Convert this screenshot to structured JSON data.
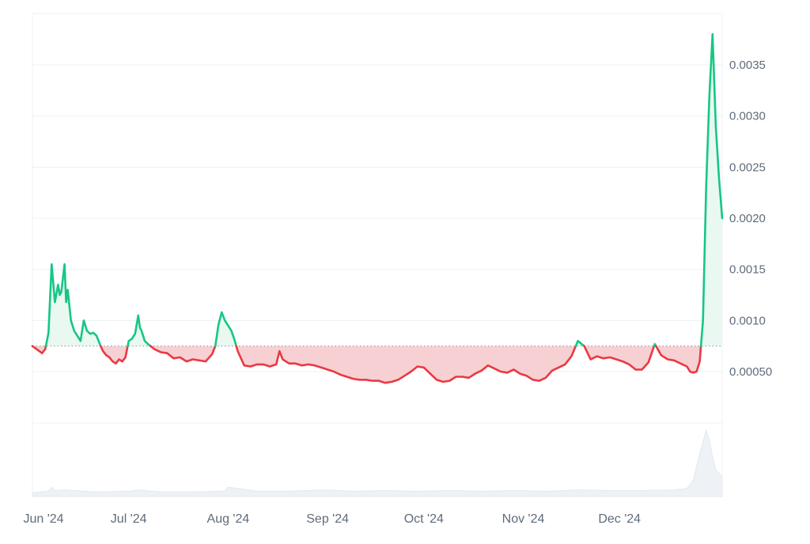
{
  "chart_data": {
    "type": "area",
    "title": "",
    "xlabel": "",
    "ylabel": "",
    "baseline": 0.00075,
    "ylim": [
      0.0,
      0.004
    ],
    "y_ticks": [
      {
        "value": 0.0005,
        "label": "0.00050"
      },
      {
        "value": 0.001,
        "label": "0.0010"
      },
      {
        "value": 0.0015,
        "label": "0.0015"
      },
      {
        "value": 0.002,
        "label": "0.0020"
      },
      {
        "value": 0.0025,
        "label": "0.0025"
      },
      {
        "value": 0.003,
        "label": "0.0030"
      },
      {
        "value": 0.0035,
        "label": "0.0035"
      }
    ],
    "x_ticks": [
      "Jun '24",
      "Jul '24",
      "Aug '24",
      "Sep '24",
      "Oct '24",
      "Nov '24",
      "Dec '24"
    ],
    "x_tick_days": [
      0,
      30,
      61,
      92,
      122,
      153,
      183
    ],
    "xlim_days": [
      0,
      215
    ],
    "colors": {
      "up_line": "#16c784",
      "up_fill": "#e9f8f1",
      "down_line": "#ea3943",
      "down_fill": "#f6d0d2",
      "grid": "#eef0f3",
      "baseline_dots": "#8a8f98",
      "volume_fill": "#eef1f5"
    },
    "price": {
      "days": [
        0,
        3,
        4,
        5,
        6,
        7,
        8,
        8.5,
        9,
        10,
        10.5,
        11,
        12,
        13,
        14,
        15,
        16,
        17,
        18,
        19,
        20,
        21,
        22,
        23,
        24,
        25,
        26,
        27,
        28,
        29,
        30,
        31,
        32,
        33,
        33.5,
        34,
        35,
        36,
        38,
        40,
        42,
        44,
        46,
        48,
        50,
        52,
        54,
        56,
        57,
        58,
        59,
        60,
        61,
        62,
        63,
        64,
        66,
        68,
        70,
        72,
        74,
        76,
        77,
        78,
        80,
        82,
        84,
        86,
        88,
        90,
        92,
        94,
        96,
        98,
        100,
        102,
        104,
        106,
        108,
        110,
        112,
        114,
        116,
        118,
        120,
        122,
        124,
        126,
        128,
        130,
        132,
        134,
        136,
        138,
        140,
        142,
        144,
        146,
        148,
        150,
        152,
        154,
        156,
        158,
        160,
        162,
        164,
        166,
        168,
        170,
        172,
        174,
        176,
        178,
        180,
        182,
        184,
        186,
        188,
        190,
        192,
        194,
        196,
        198,
        200,
        202,
        204,
        205,
        206,
        207,
        208,
        209,
        210,
        211,
        212,
        213,
        214,
        215
      ],
      "values": [
        0.00075,
        0.00068,
        0.00072,
        0.00088,
        0.00155,
        0.00118,
        0.00135,
        0.00125,
        0.00128,
        0.00155,
        0.00118,
        0.0013,
        0.001,
        0.0009,
        0.00085,
        0.0008,
        0.001,
        0.0009,
        0.00087,
        0.00088,
        0.00085,
        0.00077,
        0.0007,
        0.00066,
        0.00064,
        0.0006,
        0.00058,
        0.00062,
        0.0006,
        0.00064,
        0.0008,
        0.00082,
        0.00087,
        0.00105,
        0.00093,
        0.0009,
        0.0008,
        0.00077,
        0.00072,
        0.00069,
        0.00068,
        0.00063,
        0.00064,
        0.0006,
        0.00062,
        0.00061,
        0.0006,
        0.00067,
        0.00075,
        0.00096,
        0.00108,
        0.001,
        0.00095,
        0.0009,
        0.00081,
        0.0007,
        0.00056,
        0.00055,
        0.00057,
        0.00057,
        0.00055,
        0.00057,
        0.0007,
        0.00062,
        0.00058,
        0.00058,
        0.00056,
        0.00057,
        0.00056,
        0.00054,
        0.00052,
        0.0005,
        0.00047,
        0.00045,
        0.00043,
        0.00042,
        0.00042,
        0.00041,
        0.00041,
        0.00039,
        0.0004,
        0.00042,
        0.00046,
        0.0005,
        0.00055,
        0.00054,
        0.00048,
        0.00042,
        0.0004,
        0.00041,
        0.00045,
        0.00045,
        0.00044,
        0.00048,
        0.00051,
        0.00056,
        0.00053,
        0.0005,
        0.00049,
        0.00052,
        0.00048,
        0.00046,
        0.00042,
        0.00041,
        0.00044,
        0.00051,
        0.00054,
        0.00057,
        0.00065,
        0.0008,
        0.00075,
        0.00062,
        0.00065,
        0.00063,
        0.00064,
        0.00062,
        0.0006,
        0.00057,
        0.00052,
        0.00052,
        0.00059,
        0.00077,
        0.00066,
        0.00062,
        0.00061,
        0.00058,
        0.00055,
        0.0005,
        0.00049,
        0.0005,
        0.0006,
        0.001,
        0.0023,
        0.0032,
        0.0038,
        0.0029,
        0.0024,
        0.002
      ]
    },
    "volume": {
      "days": [
        0,
        5,
        6,
        7,
        10,
        20,
        30,
        33,
        40,
        50,
        60,
        61,
        70,
        80,
        90,
        100,
        110,
        120,
        130,
        140,
        150,
        160,
        170,
        180,
        190,
        200,
        204,
        206,
        208,
        210,
        211,
        212,
        213,
        214,
        215
      ],
      "values": [
        0.06,
        0.08,
        0.14,
        0.09,
        0.1,
        0.07,
        0.08,
        0.1,
        0.07,
        0.07,
        0.08,
        0.14,
        0.08,
        0.08,
        0.1,
        0.08,
        0.09,
        0.08,
        0.09,
        0.08,
        0.09,
        0.08,
        0.1,
        0.09,
        0.09,
        0.1,
        0.12,
        0.25,
        0.65,
        1.0,
        0.85,
        0.6,
        0.4,
        0.35,
        0.3
      ]
    }
  }
}
